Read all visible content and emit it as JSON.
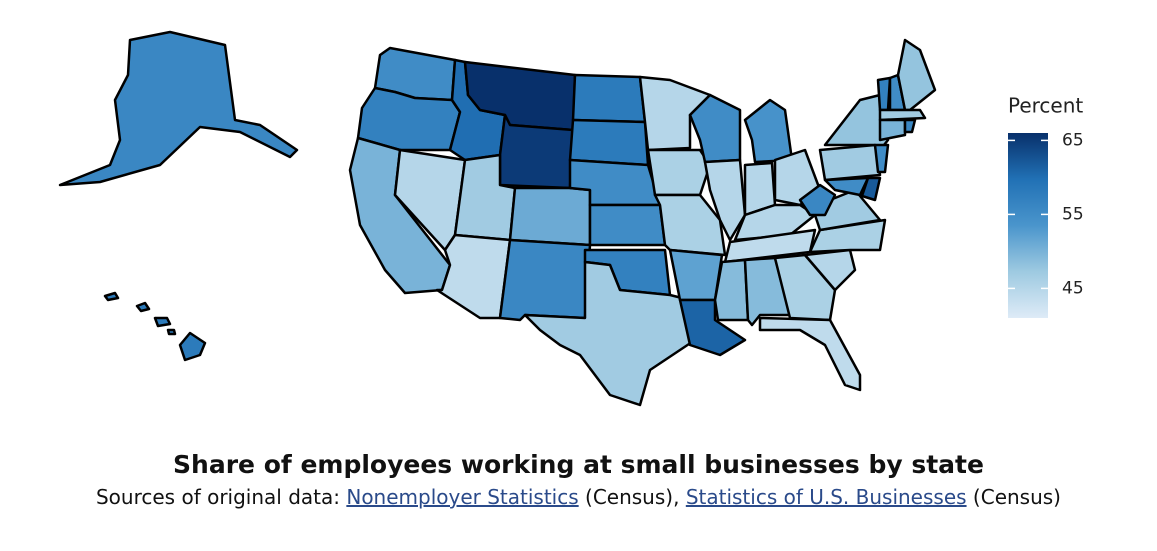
{
  "chart_data": {
    "type": "choropleth",
    "title": "Share of employees working at small businesses by state",
    "subtitle": [
      "Sources of original data:",
      "Nonemployer Statistics",
      "(Census),",
      "Statistics of U.S. Businesses",
      "(Census)"
    ],
    "values": [
      55,
      57,
      50,
      45,
      60,
      66,
      65,
      47,
      44,
      51,
      56,
      58,
      58,
      55,
      55,
      57,
      47,
      45,
      46,
      46,
      52,
      61,
      55,
      45,
      54,
      45,
      45,
      45,
      44,
      49,
      49,
      46,
      44,
      45,
      46,
      47,
      56,
      47,
      48,
      55,
      55,
      62,
      57,
      55,
      48,
      47,
      50,
      56,
      58
    ],
    "legend_title": "Percent",
    "colors": [
      "#deebf7",
      "#9ecae1",
      "#4a95cc",
      "#2171b5",
      "#08306b"
    ],
    "zlim": [
      41,
      66
    ],
    "zticks": [
      45,
      55,
      65
    ]
  }
}
